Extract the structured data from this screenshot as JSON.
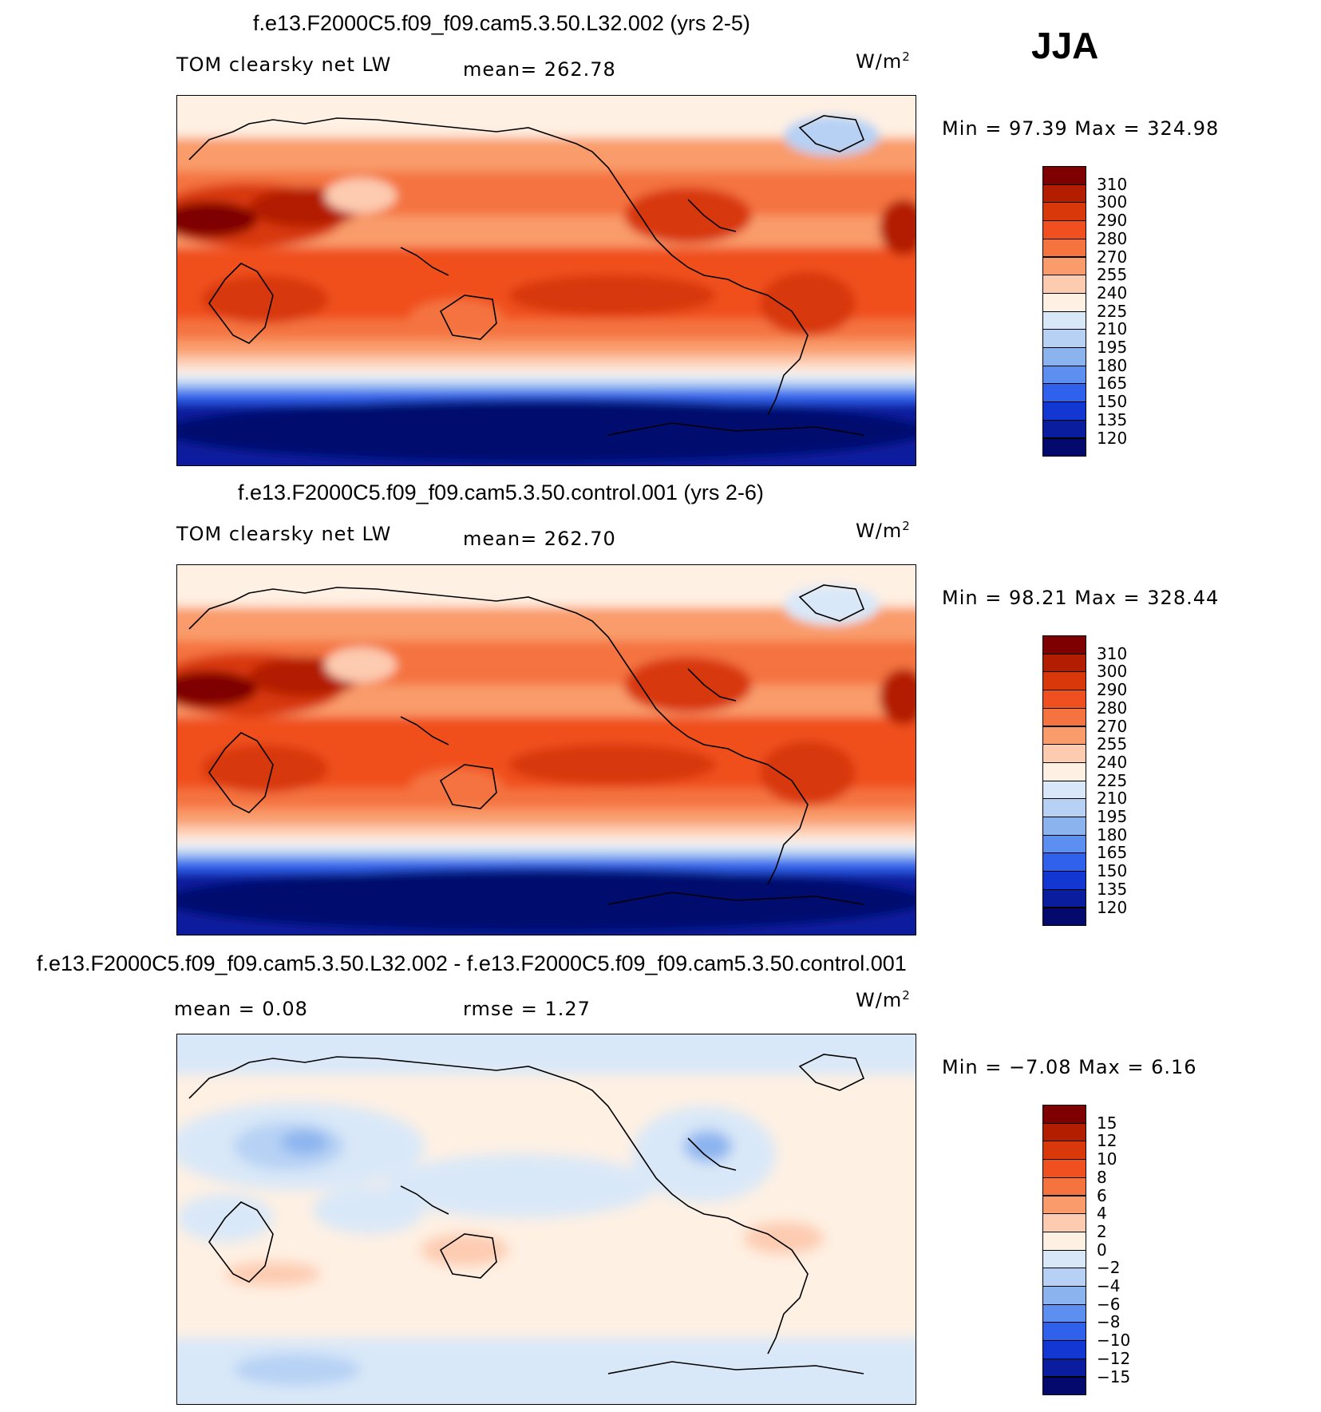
{
  "season": "JJA",
  "units_text": "W/m",
  "units_sup": "2",
  "panels": [
    {
      "title": "f.e13.F2000C5.f09_f09.cam5.3.50.L32.002 (yrs 2-5)",
      "left_label": "TOM clearsky net LW",
      "center_label": "mean=  262.78",
      "minmax": "Min =    97.39  Max  =  324.98",
      "levels": [
        "310",
        "300",
        "290",
        "280",
        "270",
        "255",
        "240",
        "225",
        "210",
        "195",
        "180",
        "165",
        "150",
        "135",
        "120"
      ],
      "colors": [
        "#7f0000",
        "#b31e00",
        "#d8380a",
        "#f04f1f",
        "#f4733f",
        "#f99b6b",
        "#fdcbb0",
        "#fef0e3",
        "#d9e8f8",
        "#b6d1f4",
        "#8bb4ef",
        "#5d8ff0",
        "#2f61ed",
        "#1337d2",
        "#0a1d9e",
        "#04096e"
      ]
    },
    {
      "title": "f.e13.F2000C5.f09_f09.cam5.3.50.control.001 (yrs 2-6)",
      "left_label": "TOM clearsky net LW",
      "center_label": "mean=  262.70",
      "minmax": "Min =    98.21  Max  =  328.44",
      "levels": [
        "310",
        "300",
        "290",
        "280",
        "270",
        "255",
        "240",
        "225",
        "210",
        "195",
        "180",
        "165",
        "150",
        "135",
        "120"
      ],
      "colors": [
        "#7f0000",
        "#b31e00",
        "#d8380a",
        "#f04f1f",
        "#f4733f",
        "#f99b6b",
        "#fdcbb0",
        "#fef0e3",
        "#d9e8f8",
        "#b6d1f4",
        "#8bb4ef",
        "#5d8ff0",
        "#2f61ed",
        "#1337d2",
        "#0a1d9e",
        "#04096e"
      ]
    },
    {
      "title": "f.e13.F2000C5.f09_f09.cam5.3.50.L32.002 - f.e13.F2000C5.f09_f09.cam5.3.50.control.001",
      "left_label": "mean =     0.08",
      "center_label": "rmse =     1.27",
      "minmax": "Min =   −7.08  Max  =     6.16",
      "levels": [
        "15",
        "12",
        "10",
        "8",
        "6",
        "4",
        "2",
        "0",
        "−2",
        "−4",
        "−6",
        "−8",
        "−10",
        "−12",
        "−15"
      ],
      "colors": [
        "#7f0000",
        "#b31e00",
        "#d8380a",
        "#f04f1f",
        "#f4733f",
        "#f99b6b",
        "#fdcbb0",
        "#fef0e3",
        "#d9e8f8",
        "#b6d1f4",
        "#8bb4ef",
        "#5d8ff0",
        "#2f61ed",
        "#1337d2",
        "#0a1d9e",
        "#04096e"
      ]
    }
  ]
}
